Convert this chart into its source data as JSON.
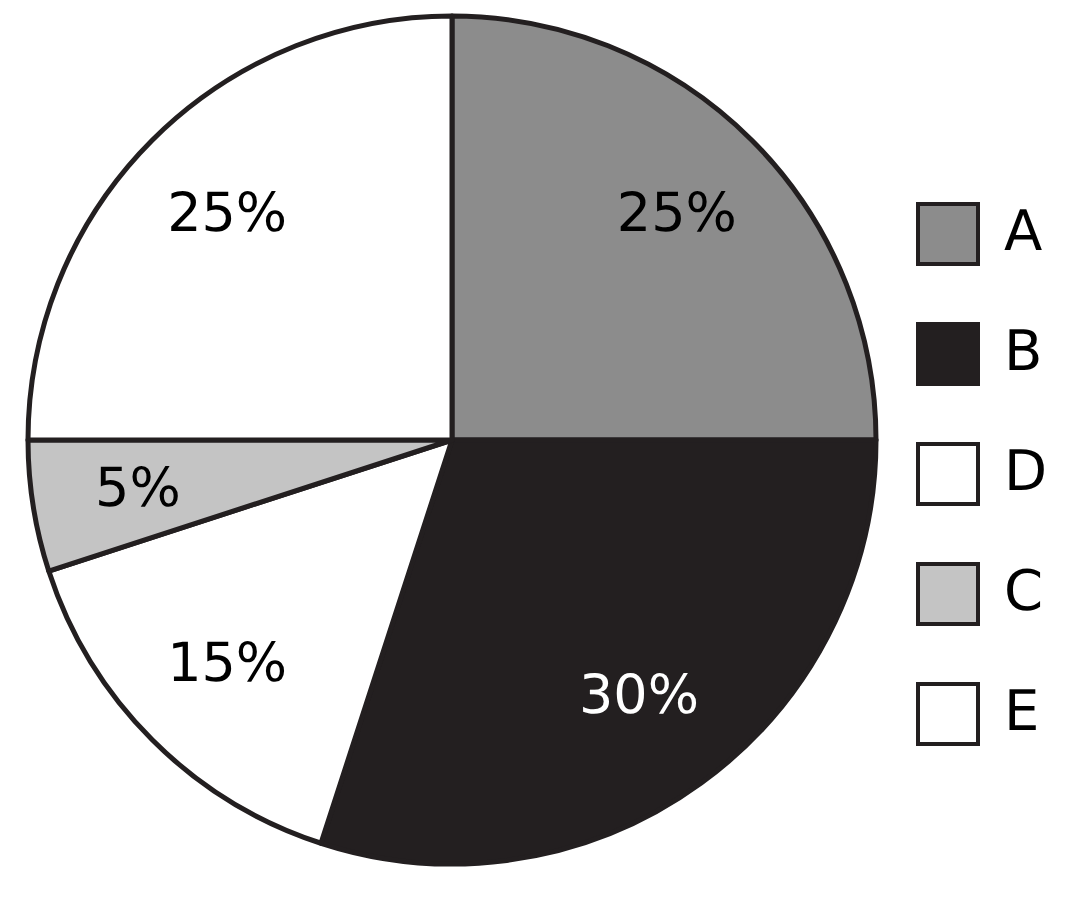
{
  "chart_data": {
    "type": "pie",
    "categories": [
      "A",
      "B",
      "D",
      "C",
      "E"
    ],
    "values": [
      25,
      30,
      15,
      5,
      25
    ],
    "colors": [
      "#8c8c8c",
      "#231f20",
      "#ffffff",
      "#c4c4c4",
      "#ffffff"
    ],
    "value_labels": [
      "25%",
      "30%",
      "15%",
      "5%",
      "25%"
    ],
    "legend": "right"
  }
}
